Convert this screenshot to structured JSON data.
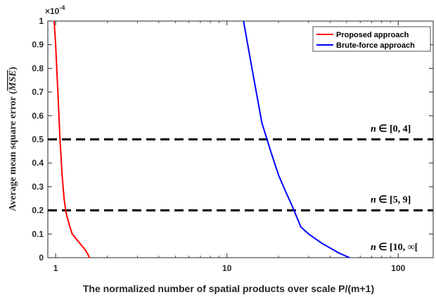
{
  "chart_data": {
    "type": "line",
    "xlabel": "The normalized number of spatial products over scale P/(m+1)",
    "ylabel": "Average mean square error (",
    "ylabel_symbol": "MSE",
    "ylabel_close": ")",
    "y_exponent": "×10",
    "y_exponent_power": "-4",
    "x_scale": "log",
    "xlim": [
      0.9,
      160
    ],
    "ylim": [
      0,
      1
    ],
    "x_ticks": [
      1,
      10,
      100
    ],
    "x_tick_labels": [
      "1",
      "10",
      "100"
    ],
    "y_ticks": [
      0,
      0.1,
      0.2,
      0.3,
      0.4,
      0.5,
      0.6,
      0.7,
      0.8,
      0.9,
      1
    ],
    "y_tick_labels": [
      "0",
      "0.1",
      "0.2",
      "0.3",
      "0.4",
      "0.5",
      "0.6",
      "0.7",
      "0.8",
      "0.9",
      "1"
    ],
    "grid": false,
    "legend_position": "top-right",
    "series": [
      {
        "name": "Proposed approach",
        "color": "#ff0000",
        "x": [
          0.98,
          1.0,
          1.03,
          1.06,
          1.09,
          1.12,
          1.15,
          1.2,
          1.25,
          1.35,
          1.5,
          1.58
        ],
        "y": [
          1.0,
          0.9,
          0.7,
          0.5,
          0.35,
          0.25,
          0.19,
          0.14,
          0.1,
          0.07,
          0.03,
          0.0
        ]
      },
      {
        "name": "Brute-force approach",
        "color": "#0000ff",
        "x": [
          12.5,
          14,
          16,
          18,
          20,
          22,
          24,
          27,
          30,
          36,
          45,
          52
        ],
        "y": [
          1.0,
          0.8,
          0.57,
          0.45,
          0.35,
          0.28,
          0.22,
          0.13,
          0.1,
          0.06,
          0.02,
          0.0
        ]
      }
    ],
    "thresholds": [
      {
        "y": 0.5,
        "label_prefix": "n",
        "label_suffix": " ∈ [0, 4]",
        "color": "#000000"
      },
      {
        "y": 0.2,
        "label_prefix": "n",
        "label_suffix": " ∈ [5, 9]",
        "color": "#000000"
      },
      {
        "y": 0.0,
        "label_prefix": "n",
        "label_suffix": " ∈ [10, ∞[",
        "color": "#000000"
      }
    ]
  }
}
